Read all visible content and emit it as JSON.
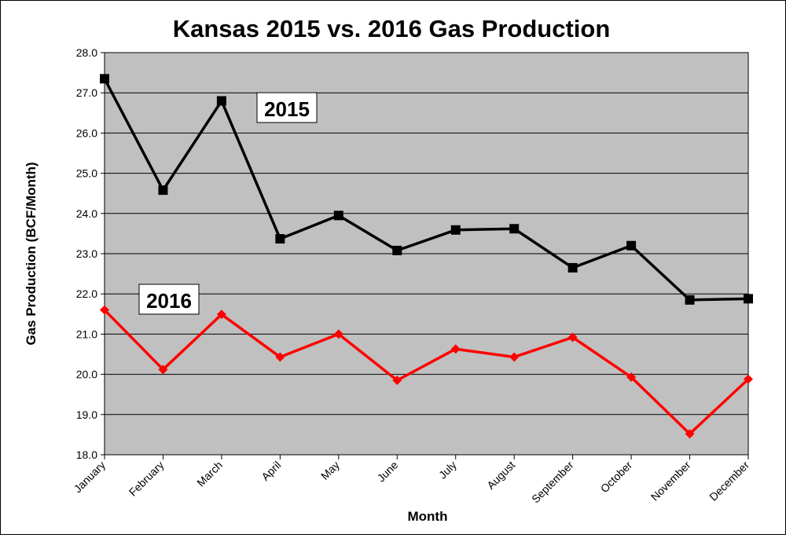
{
  "chart_data": {
    "type": "line",
    "title": "Kansas 2015 vs. 2016 Gas Production",
    "xlabel": "Month",
    "ylabel": "Gas Production (BCF/Month)",
    "ylim": [
      18.0,
      28.0
    ],
    "yticks": [
      "18.0",
      "19.0",
      "20.0",
      "21.0",
      "22.0",
      "23.0",
      "24.0",
      "25.0",
      "26.0",
      "27.0",
      "28.0"
    ],
    "grid": true,
    "plot_background": "#c0c0c0",
    "categories": [
      "January",
      "February",
      "March",
      "April",
      "May",
      "June",
      "July",
      "August",
      "September",
      "October",
      "November",
      "December"
    ],
    "series": [
      {
        "name": "2015",
        "color": "#000000",
        "marker": "square",
        "values": [
          27.35,
          24.58,
          26.8,
          23.37,
          23.95,
          23.08,
          23.59,
          23.62,
          22.65,
          23.2,
          21.85,
          21.88
        ]
      },
      {
        "name": "2016",
        "color": "#ff0000",
        "marker": "diamond",
        "values": [
          21.6,
          20.12,
          21.49,
          20.43,
          21.0,
          19.85,
          20.63,
          20.43,
          20.92,
          19.93,
          18.52,
          19.88
        ]
      }
    ]
  }
}
